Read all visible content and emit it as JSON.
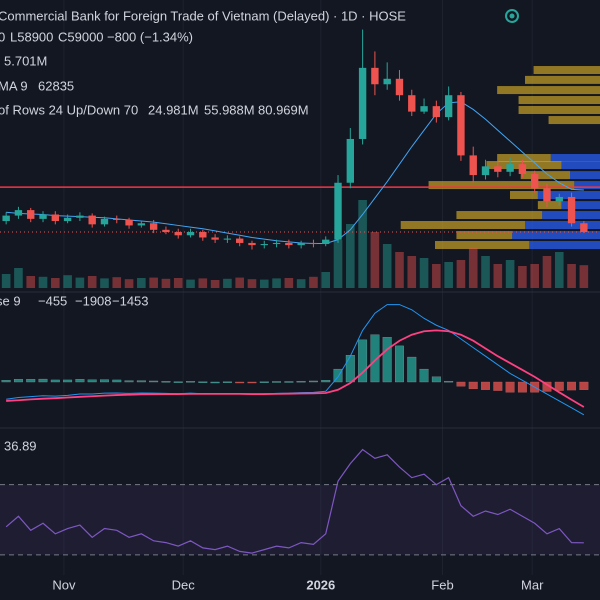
{
  "chart_data": {
    "type": "candlestick",
    "title": "Commercial Bank for Foreign Trade of Vietnam (Delayed) · 1D · HOSE",
    "open": [
      60000,
      60500,
      61000,
      60200,
      60600,
      60000,
      60300,
      60500,
      59700,
      60200,
      60100,
      59600,
      59800,
      59200,
      59000,
      58700,
      59000,
      58500,
      58300,
      58400,
      58000,
      57800,
      57900,
      58000,
      57800,
      58000,
      57900,
      58300,
      63500,
      67500,
      74000,
      72500,
      73000,
      71500,
      70000,
      70500,
      69500,
      71500,
      66000,
      64200,
      65000,
      64500,
      65200,
      64300,
      63000,
      61800,
      62200,
      59800
    ],
    "high": [
      60800,
      61300,
      61200,
      60900,
      60900,
      60600,
      60800,
      60700,
      60400,
      60500,
      60300,
      60000,
      60100,
      59500,
      59300,
      59300,
      59200,
      58800,
      58700,
      58600,
      58200,
      58200,
      58300,
      58300,
      58200,
      58300,
      58600,
      64200,
      68500,
      77500,
      75500,
      74500,
      73800,
      72000,
      71200,
      71000,
      72300,
      71800,
      66800,
      65600,
      65500,
      65800,
      65600,
      64600,
      63400,
      62500,
      62600,
      60000
    ],
    "low": [
      59700,
      60200,
      59900,
      59900,
      59700,
      59800,
      60000,
      59400,
      59500,
      59800,
      59300,
      59400,
      58900,
      58800,
      58400,
      58500,
      58200,
      58000,
      58000,
      57700,
      57400,
      57500,
      57600,
      57500,
      57500,
      57600,
      57700,
      58000,
      63000,
      67000,
      71500,
      72000,
      71000,
      69600,
      69800,
      69000,
      69200,
      65500,
      63500,
      63800,
      64000,
      64100,
      64000,
      62600,
      61300,
      61400,
      59500,
      58900
    ],
    "close": [
      60500,
      61000,
      60200,
      60600,
      60000,
      60300,
      60500,
      59700,
      60200,
      60100,
      59600,
      59800,
      59200,
      59000,
      58700,
      59000,
      58500,
      58300,
      58400,
      58000,
      57800,
      57900,
      58000,
      57800,
      58000,
      57900,
      58300,
      63500,
      67500,
      74000,
      72500,
      73000,
      71500,
      70000,
      70500,
      69500,
      71500,
      66000,
      64200,
      65000,
      64500,
      65200,
      64300,
      63000,
      61800,
      62200,
      59800,
      59000
    ],
    "ylim": [
      53700,
      80200
    ],
    "up_color": "#26a69a",
    "down_color": "#ef5350",
    "ma": {
      "color": "#42a5f5",
      "values": [
        60800,
        60700,
        60650,
        60600,
        60500,
        60450,
        60400,
        60350,
        60300,
        60200,
        60100,
        60000,
        59900,
        59750,
        59600,
        59450,
        59300,
        59100,
        58900,
        58700,
        58500,
        58350,
        58200,
        58100,
        58000,
        57950,
        57950,
        58300,
        59200,
        60600,
        62100,
        63600,
        65200,
        66800,
        68300,
        69800,
        70800,
        70900,
        70200,
        69300,
        68300,
        67300,
        66300,
        65300,
        64300,
        63500,
        62900,
        62835
      ]
    },
    "hline": {
      "value": 63100,
      "color": "#f23645"
    },
    "xticks": [
      {
        "value": 4.7,
        "label": "Nov"
      },
      {
        "value": 14.4,
        "label": "Dec"
      },
      {
        "value": 25.6,
        "label": "2026"
      },
      {
        "value": 35.5,
        "label": "Feb"
      },
      {
        "value": 42.8,
        "label": "Mar"
      }
    ],
    "grid": true,
    "volume": {
      "ylim": [
        0,
        30000000
      ],
      "values": [
        3500000,
        5000000,
        3000000,
        2800000,
        2500000,
        3200000,
        2600000,
        3000000,
        2400000,
        2700000,
        2200000,
        2500000,
        2600000,
        2300000,
        2500000,
        2100000,
        2400000,
        2000000,
        2300000,
        2600000,
        2200000,
        2100000,
        2400000,
        2500000,
        2200000,
        2800000,
        4000000,
        12000000,
        16000000,
        22000000,
        14000000,
        11000000,
        9000000,
        8000000,
        7500000,
        6000000,
        6500000,
        7000000,
        10000000,
        8000000,
        6000000,
        7000000,
        5500000,
        6000000,
        8000000,
        9000000,
        6000000,
        5701000
      ]
    },
    "profile": {
      "xlim": [
        0,
        28000000
      ],
      "up_color": "#2962ff",
      "down_color": "#c9a227",
      "price": [
        73800,
        72900,
        71970,
        71060,
        70150,
        69230,
        65760,
        65120,
        64200,
        63290,
        62380,
        61460,
        60550,
        59640,
        58720,
        57810
      ],
      "up": [
        0,
        0,
        0,
        0,
        0,
        0,
        2300000,
        1800000,
        1400000,
        1200000,
        2900000,
        1800000,
        2700000,
        3500000,
        4100000,
        3300000
      ],
      "down": [
        3100000,
        3500000,
        4800000,
        3800000,
        3800000,
        2400000,
        2500000,
        3500000,
        2300000,
        6800000,
        1300000,
        1100000,
        4000000,
        5800000,
        2600000,
        4400000
      ]
    },
    "macd": {
      "ylim": [
        -2500,
        5000
      ],
      "macd_color": "#2196f3",
      "signal_color": "#ff4081",
      "macd": [
        -1000,
        -900,
        -850,
        -800,
        -820,
        -780,
        -700,
        -700,
        -650,
        -640,
        -660,
        -640,
        -650,
        -660,
        -680,
        -650,
        -680,
        -690,
        -680,
        -700,
        -710,
        -690,
        -660,
        -650,
        -620,
        -600,
        -540,
        300,
        1500,
        3000,
        4000,
        4500,
        4500,
        4200,
        3700,
        3300,
        3000,
        2500,
        2000,
        1500,
        1000,
        500,
        100,
        -300,
        -700,
        -1100,
        -1500,
        -1908
      ],
      "signal": [
        -1100,
        -1060,
        -1010,
        -970,
        -940,
        -900,
        -860,
        -830,
        -790,
        -760,
        -740,
        -720,
        -710,
        -700,
        -700,
        -690,
        -690,
        -690,
        -690,
        -690,
        -700,
        -700,
        -690,
        -680,
        -670,
        -660,
        -640,
        -450,
        -60,
        550,
        1250,
        1900,
        2400,
        2750,
        2950,
        3000,
        2950,
        2750,
        2400,
        1950,
        1500,
        1100,
        700,
        300,
        -150,
        -600,
        -1030,
        -1453
      ],
      "hist": [
        100,
        160,
        160,
        170,
        120,
        120,
        160,
        130,
        140,
        120,
        80,
        80,
        60,
        40,
        20,
        40,
        10,
        0,
        10,
        -10,
        -10,
        10,
        30,
        30,
        50,
        60,
        100,
        750,
        1560,
        2450,
        2750,
        2600,
        2100,
        1450,
        750,
        300,
        50,
        -250,
        -400,
        -450,
        -500,
        -600,
        -600,
        -600,
        -550,
        -500,
        -470,
        -455
      ]
    },
    "rsi": {
      "ylim": [
        10,
        100
      ],
      "levels": [
        70,
        30
      ],
      "color": "#7e57c2",
      "values": [
        46,
        52,
        44,
        48,
        42,
        45,
        47,
        40,
        45,
        44,
        40,
        42,
        38,
        37,
        35,
        38,
        34,
        33,
        35,
        32,
        31,
        33,
        35,
        34,
        37,
        36,
        42,
        72,
        82,
        90,
        85,
        87,
        80,
        74,
        76,
        70,
        74,
        58,
        52,
        55,
        53,
        56,
        52,
        48,
        42,
        45,
        37,
        36.89
      ]
    }
  },
  "legend": {
    "ohlc": [
      "0",
      "L58900",
      "C59000",
      "−800 (−1.34%)"
    ],
    "volume": "5.701M",
    "ma_name": "MA 9",
    "ma_value": "62835",
    "profile_name": "of Rows 24 Up/Down 70",
    "profile_up": "24.981M",
    "profile_down": "55.988M",
    "profile_total": "80.969M",
    "macd_name": "se 9",
    "macd_hist": "−455",
    "macd_macd": "−1908",
    "macd_signal": "−1453",
    "rsi_value": "36.89"
  }
}
